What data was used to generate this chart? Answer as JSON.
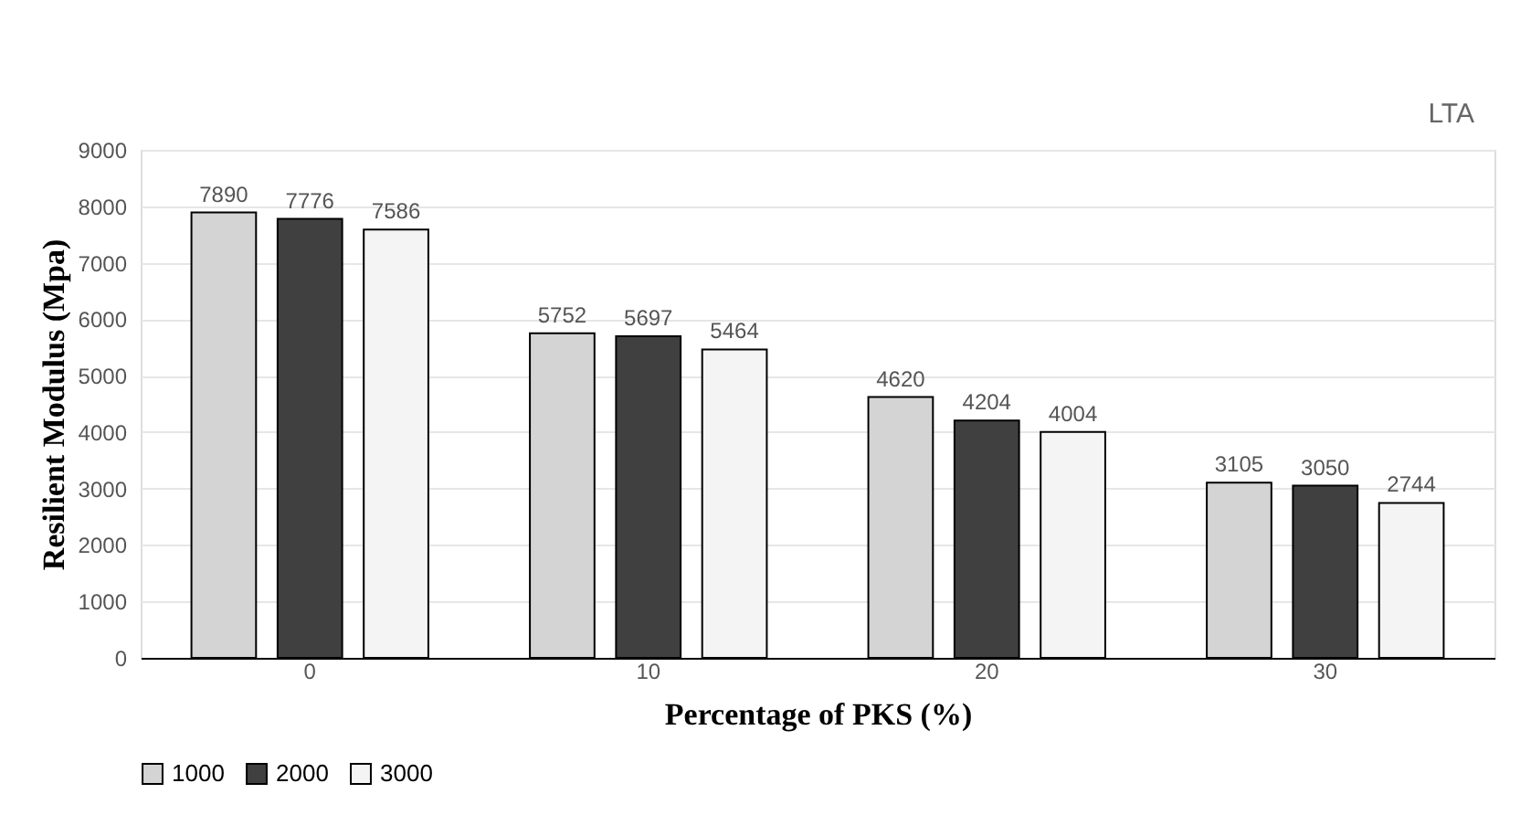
{
  "chart_data": {
    "type": "bar",
    "xlabel": "Percentage of PKS (%)",
    "ylabel": "Resilient Modulus (Mpa)",
    "categories": [
      "0",
      "10",
      "20",
      "30"
    ],
    "series": [
      {
        "name": "1000",
        "color": "#d4d4d4",
        "values": [
          7890,
          5752,
          4620,
          3105
        ]
      },
      {
        "name": "2000",
        "color": "#404040",
        "values": [
          7776,
          5697,
          4204,
          3050
        ]
      },
      {
        "name": "3000",
        "color": "#f4f4f4",
        "values": [
          7586,
          5464,
          4004,
          2744
        ]
      }
    ],
    "ylim": [
      0,
      9000
    ],
    "yticks": [
      0,
      1000,
      2000,
      3000,
      4000,
      5000,
      6000,
      7000,
      8000,
      9000
    ],
    "grid": "y",
    "legend": "bottom",
    "data_labels": true,
    "annotations": [
      "LTA"
    ]
  }
}
